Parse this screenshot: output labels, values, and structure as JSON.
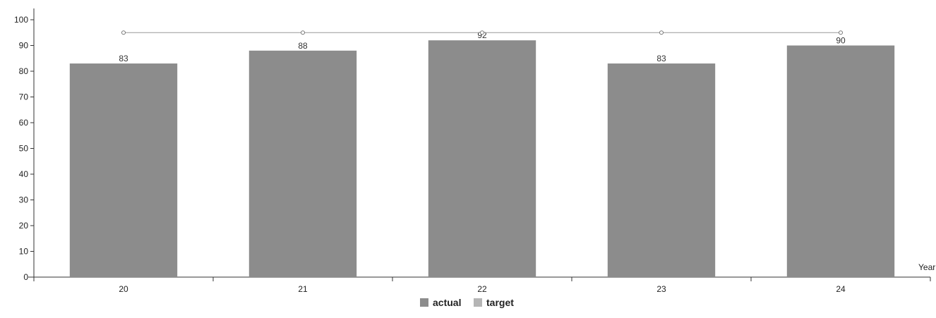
{
  "chart_data": {
    "type": "bar",
    "title": "",
    "xlabel": "Year",
    "ylabel": "",
    "categories": [
      "20",
      "21",
      "22",
      "23",
      "24"
    ],
    "ylim": [
      0,
      100
    ],
    "yticks": [
      0,
      10,
      20,
      30,
      40,
      50,
      60,
      70,
      80,
      90,
      100
    ],
    "grid": false,
    "legend": "bottom-center",
    "series": [
      {
        "name": "actual",
        "type": "bar",
        "values": [
          83,
          88,
          92,
          83,
          90
        ],
        "color": "#8c8c8c"
      },
      {
        "name": "target",
        "type": "line",
        "values": [
          95,
          95,
          95,
          95,
          95
        ],
        "color": "#b5b5b5"
      }
    ],
    "data_labels": [
      "83",
      "88",
      "92",
      "83",
      "90"
    ]
  }
}
